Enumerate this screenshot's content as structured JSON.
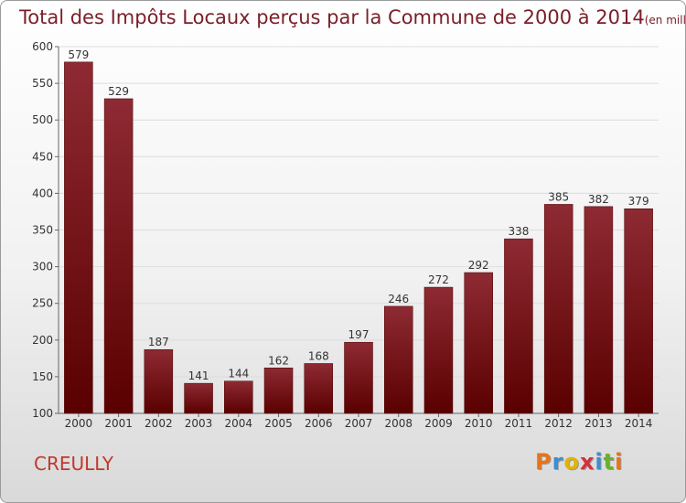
{
  "title": {
    "main": "Total des Impôts Locaux perçus par la Commune de 2000 à 2014",
    "unit": "(en milliers d'€)"
  },
  "commune": "CREULLY",
  "brand": {
    "name": "Proxiti",
    "letters": [
      {
        "char": "P",
        "color": "#e8731a"
      },
      {
        "char": "r",
        "color": "#3a8fd0"
      },
      {
        "char": "o",
        "color": "#e0b400"
      },
      {
        "char": "x",
        "color": "#d6303d"
      },
      {
        "char": "i",
        "color": "#3a8fd0"
      },
      {
        "char": "t",
        "color": "#6bb02e"
      },
      {
        "char": "i",
        "color": "#e8731a"
      }
    ]
  },
  "colors": {
    "bar_top": "#8e2a33",
    "bar_bottom": "#5a0000",
    "title": "#7a1f28",
    "grid": "#dddddd"
  },
  "chart_data": {
    "type": "bar",
    "title": "Total des Impôts Locaux perçus par la Commune de 2000 à 2014",
    "xlabel": "",
    "ylabel": "en milliers d'€",
    "categories": [
      "2000",
      "2001",
      "2002",
      "2003",
      "2004",
      "2005",
      "2006",
      "2007",
      "2008",
      "2009",
      "2010",
      "2011",
      "2012",
      "2013",
      "2014"
    ],
    "values": [
      579,
      529,
      187,
      141,
      144,
      162,
      168,
      197,
      246,
      272,
      292,
      338,
      385,
      382,
      379
    ],
    "ylim": [
      100,
      600
    ],
    "yticks": [
      100,
      150,
      200,
      250,
      300,
      350,
      400,
      450,
      500,
      550,
      600
    ],
    "grid": true
  }
}
